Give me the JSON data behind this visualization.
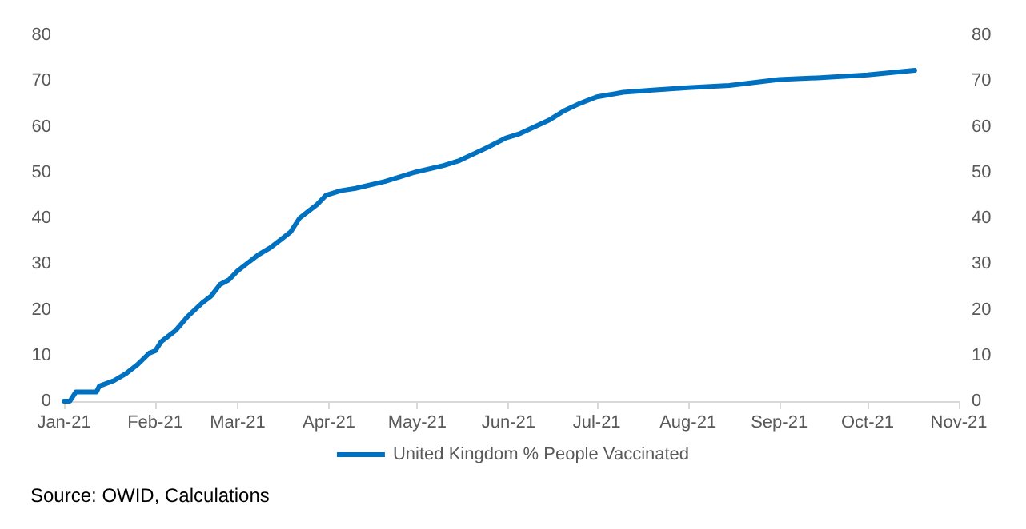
{
  "chart_data": {
    "type": "line",
    "x": [
      "2021-01-01",
      "2021-01-03",
      "2021-01-05",
      "2021-01-12",
      "2021-01-13",
      "2021-01-18",
      "2021-01-22",
      "2021-01-26",
      "2021-01-30",
      "2021-02-01",
      "2021-02-03",
      "2021-02-08",
      "2021-02-12",
      "2021-02-17",
      "2021-02-20",
      "2021-02-23",
      "2021-02-26",
      "2021-03-01",
      "2021-03-04",
      "2021-03-08",
      "2021-03-12",
      "2021-03-16",
      "2021-03-19",
      "2021-03-22",
      "2021-03-25",
      "2021-03-28",
      "2021-03-31",
      "2021-04-05",
      "2021-04-10",
      "2021-04-20",
      "2021-04-30",
      "2021-05-10",
      "2021-05-15",
      "2021-05-20",
      "2021-05-25",
      "2021-05-31",
      "2021-06-05",
      "2021-06-10",
      "2021-06-15",
      "2021-06-20",
      "2021-06-25",
      "2021-07-01",
      "2021-07-10",
      "2021-07-20",
      "2021-08-01",
      "2021-08-15",
      "2021-09-01",
      "2021-09-15",
      "2021-10-01",
      "2021-10-17"
    ],
    "series": [
      {
        "name": "United Kingdom % People Vaccinated",
        "color": "#0070c0",
        "values": [
          0,
          0,
          2,
          2,
          3.3,
          4.5,
          6,
          8,
          10.5,
          11,
          13,
          15.5,
          18.5,
          21.5,
          23,
          25.5,
          26.5,
          28.5,
          30,
          32,
          33.5,
          35.5,
          37,
          40,
          41.5,
          43,
          45,
          46,
          46.5,
          48,
          50,
          51.5,
          52.5,
          54,
          55.5,
          57.5,
          58.5,
          60,
          61.5,
          63.5,
          65,
          66.5,
          67.5,
          68,
          68.5,
          69,
          70.3,
          70.7,
          71.3,
          72.3
        ]
      }
    ],
    "xlim": [
      "2021-01-01",
      "2021-11-01"
    ],
    "xticks": [
      {
        "value": "2021-01-01",
        "label": "Jan-21"
      },
      {
        "value": "2021-02-01",
        "label": "Feb-21"
      },
      {
        "value": "2021-03-01",
        "label": "Mar-21"
      },
      {
        "value": "2021-04-01",
        "label": "Apr-21"
      },
      {
        "value": "2021-05-01",
        "label": "May-21"
      },
      {
        "value": "2021-06-01",
        "label": "Jun-21"
      },
      {
        "value": "2021-07-01",
        "label": "Jul-21"
      },
      {
        "value": "2021-08-01",
        "label": "Aug-21"
      },
      {
        "value": "2021-09-01",
        "label": "Sep-21"
      },
      {
        "value": "2021-10-01",
        "label": "Oct-21"
      },
      {
        "value": "2021-11-01",
        "label": "Nov-21"
      }
    ],
    "ylim": [
      0,
      80
    ],
    "yticks": [
      0,
      10,
      20,
      30,
      40,
      50,
      60,
      70,
      80
    ],
    "y2lim": [
      0,
      80
    ],
    "y2ticks": [
      0,
      10,
      20,
      30,
      40,
      50,
      60,
      70,
      80
    ],
    "grid": false,
    "legend": "bottom",
    "marker": "none",
    "line_style": "solid",
    "annotations": [
      "Source: OWID, Calculations"
    ]
  }
}
